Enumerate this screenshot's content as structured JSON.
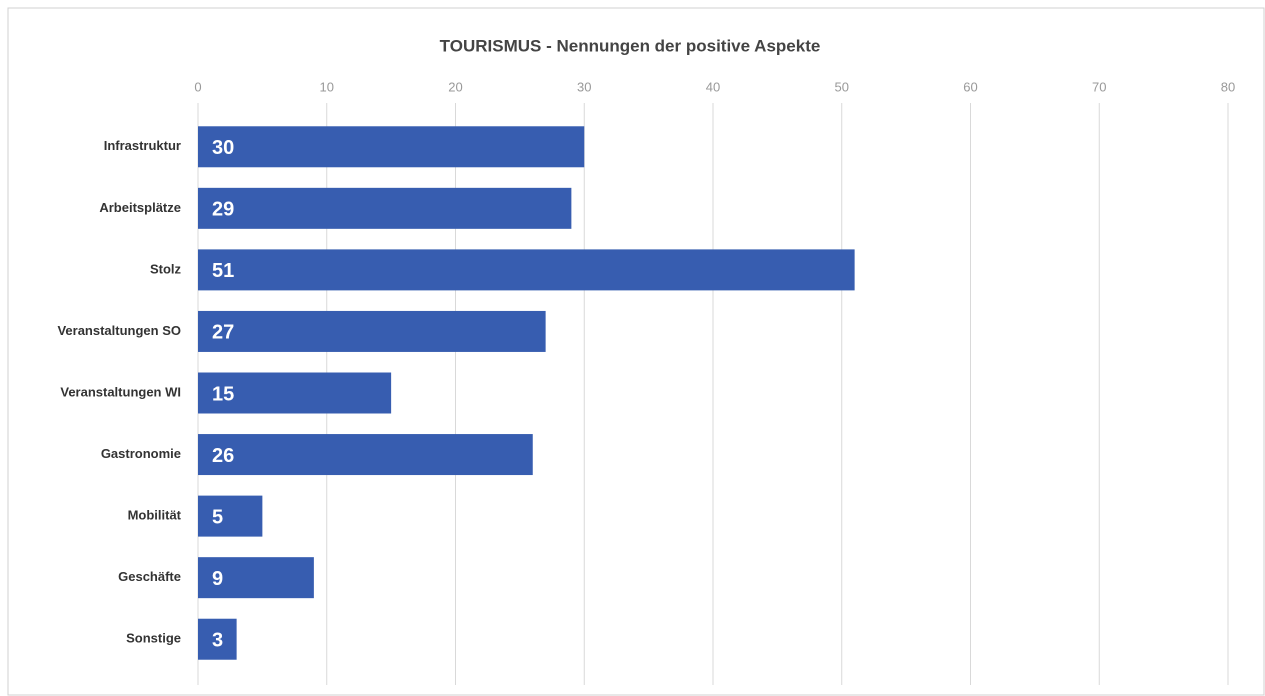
{
  "chart_data": {
    "type": "bar",
    "orientation": "horizontal",
    "title": "TOURISMUS - Nennungen der positive Aspekte",
    "categories": [
      "Infrastruktur",
      "Arbeitsplätze",
      "Stolz",
      "Veranstaltungen SO",
      "Veranstaltungen WI",
      "Gastronomie",
      "Mobilität",
      "Geschäfte",
      "Sonstige"
    ],
    "values": [
      30,
      29,
      51,
      27,
      15,
      26,
      5,
      9,
      3
    ],
    "color": "#375db0",
    "xlim": [
      0,
      80
    ],
    "xticks": [
      0,
      10,
      20,
      30,
      40,
      50,
      60,
      70,
      80
    ],
    "grid": true
  }
}
